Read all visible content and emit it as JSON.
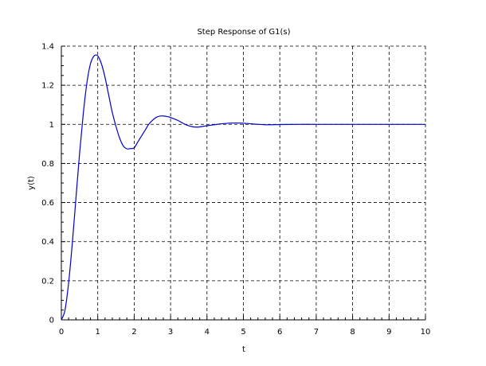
{
  "chart_data": {
    "type": "line",
    "title": "Step Response of G1(s)",
    "xlabel": "t",
    "ylabel": "y(t)",
    "xlim": [
      0,
      10
    ],
    "ylim": [
      0,
      1.4
    ],
    "xticks": [
      0,
      1,
      2,
      3,
      4,
      5,
      6,
      7,
      8,
      9,
      10
    ],
    "yticks": [
      0,
      0.2,
      0.4,
      0.6,
      0.8,
      1,
      1.2,
      1.4
    ],
    "xtick_labels": [
      "0",
      "1",
      "2",
      "3",
      "4",
      "5",
      "6",
      "7",
      "8",
      "9",
      "10"
    ],
    "ytick_labels": [
      "0",
      "0.2",
      "0.4",
      "0.6",
      "0.8",
      "1",
      "1.2",
      "1.4"
    ],
    "grid": true,
    "grid_style": "dashed",
    "series": [
      {
        "color": "#0000cc",
        "x": [
          0,
          0.1,
          0.2,
          0.3,
          0.4,
          0.5,
          0.6,
          0.7,
          0.8,
          0.9,
          1.0,
          1.1,
          1.2,
          1.3,
          1.4,
          1.5,
          1.6,
          1.7,
          1.8,
          1.9,
          2.0,
          2.1,
          2.2,
          2.3,
          2.4,
          2.5,
          2.6,
          2.7,
          2.8,
          2.9,
          3.0,
          3.1,
          3.2,
          3.3,
          3.4,
          3.5,
          3.6,
          3.7,
          3.8,
          3.9,
          4.0,
          4.2,
          4.4,
          4.6,
          4.8,
          5.0,
          5.2,
          5.4,
          5.6,
          5.8,
          6.0,
          6.5,
          7.0,
          7.5,
          8.0,
          8.5,
          9.0,
          9.5,
          10.0
        ],
        "y": [
          0,
          0.05,
          0.19,
          0.39,
          0.62,
          0.85,
          1.05,
          1.21,
          1.31,
          1.35,
          1.35,
          1.31,
          1.24,
          1.15,
          1.06,
          0.99,
          0.93,
          0.89,
          0.875,
          0.876,
          0.88,
          0.91,
          0.94,
          0.97,
          1.0,
          1.02,
          1.035,
          1.042,
          1.043,
          1.04,
          1.035,
          1.028,
          1.02,
          1.01,
          1.0,
          0.993,
          0.988,
          0.986,
          0.987,
          0.99,
          0.993,
          0.998,
          1.003,
          1.006,
          1.007,
          1.006,
          1.003,
          1.0,
          0.998,
          0.998,
          0.999,
          1.0,
          1.0,
          1.0,
          1.0,
          1.0,
          1.0,
          1.0,
          1.0
        ]
      }
    ]
  }
}
